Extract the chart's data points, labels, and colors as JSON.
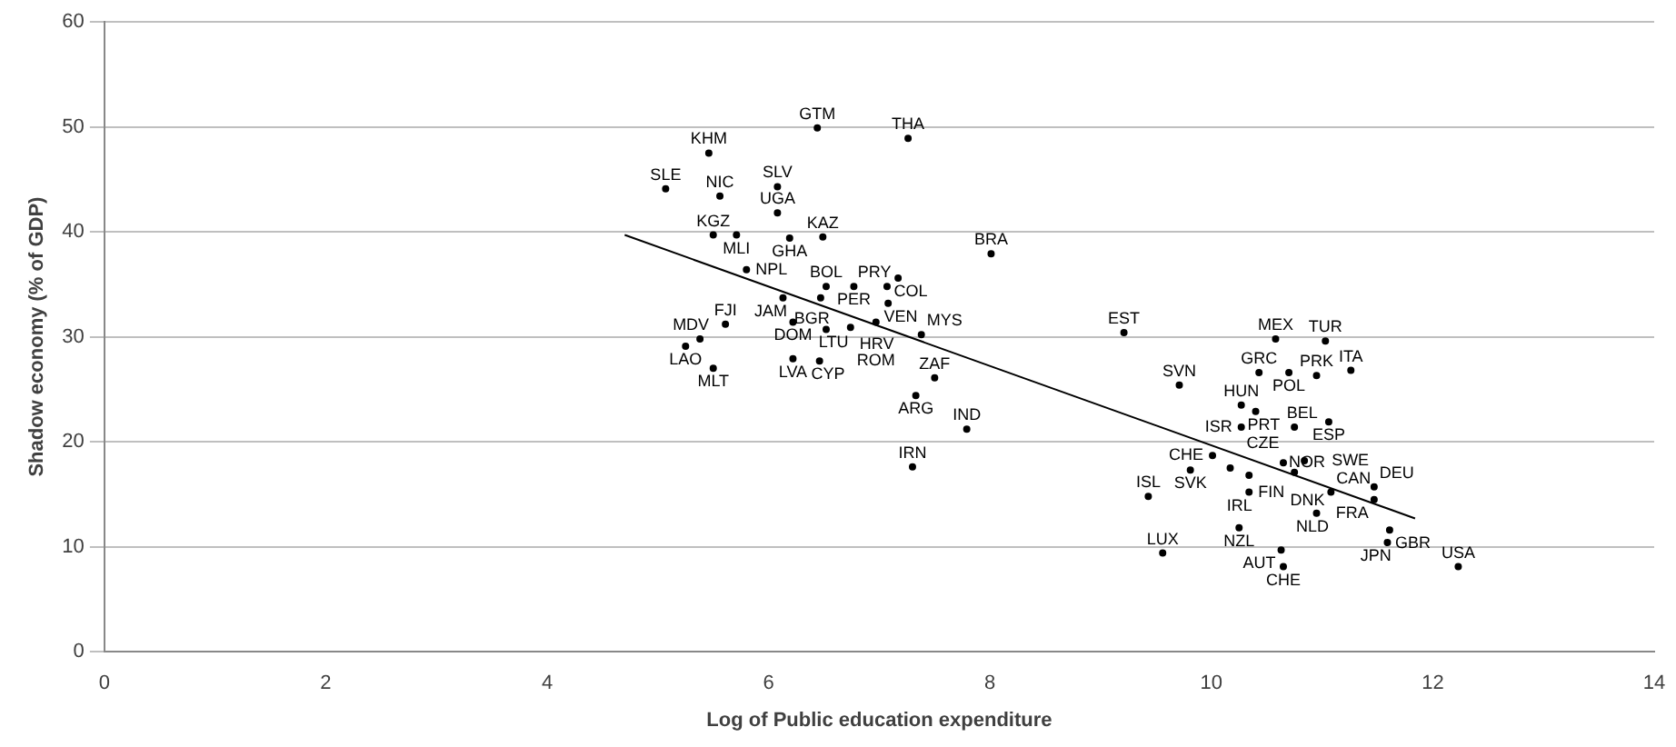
{
  "chart_data": {
    "type": "scatter",
    "xlabel": "Log of Public education expenditure",
    "ylabel": "Shadow economy (% of GDP)",
    "xlim": [
      0,
      14
    ],
    "xticks": [
      0,
      2,
      4,
      6,
      8,
      10,
      12,
      14
    ],
    "ylim": [
      0,
      60
    ],
    "yticks": [
      0,
      10,
      20,
      30,
      40,
      50,
      60
    ],
    "grid": "y",
    "legend": false,
    "series": [
      {
        "color": "#000000",
        "marker": "circle",
        "x": [
          6.44,
          7.26,
          5.46,
          5.07,
          5.56,
          6.08,
          6.08,
          5.5,
          5.71,
          6.19,
          6.49,
          8.01,
          5.8,
          6.52,
          6.77,
          7.07,
          7.17,
          6.13,
          6.47,
          7.08,
          5.61,
          6.22,
          6.52,
          6.74,
          6.97,
          7.38,
          5.25,
          5.38,
          5.5,
          6.22,
          6.46,
          7.5,
          7.33,
          7.79,
          7.3,
          9.21,
          10.58,
          11.03,
          10.43,
          10.7,
          10.95,
          11.26,
          9.71,
          10.27,
          10.4,
          10.27,
          10.75,
          11.06,
          10.01,
          9.81,
          10.17,
          10.34,
          10.65,
          10.84,
          10.75,
          9.43,
          10.34,
          11.08,
          11.47,
          11.47,
          10.95,
          10.25,
          11.61,
          11.59,
          9.56,
          10.63,
          10.65,
          12.23
        ],
        "values": [
          49.9,
          48.9,
          47.5,
          44.1,
          43.4,
          44.3,
          41.8,
          39.7,
          39.7,
          39.4,
          39.5,
          37.9,
          36.4,
          34.8,
          34.8,
          34.8,
          35.6,
          33.7,
          33.7,
          33.2,
          31.2,
          31.4,
          30.7,
          30.9,
          31.4,
          30.2,
          29.1,
          29.8,
          27.0,
          27.9,
          27.7,
          26.1,
          24.4,
          21.2,
          17.6,
          30.4,
          29.8,
          29.6,
          26.6,
          26.6,
          26.3,
          26.8,
          25.4,
          23.5,
          22.9,
          21.4,
          21.4,
          21.9,
          18.7,
          17.3,
          17.5,
          16.8,
          18.0,
          18.2,
          17.1,
          14.8,
          15.2,
          15.2,
          15.7,
          14.5,
          13.2,
          11.8,
          11.6,
          10.4,
          9.4,
          9.7,
          8.1,
          8.1
        ],
        "value_labels": [
          "GTM",
          "THA",
          "KHM",
          "SLE",
          "NIC",
          "SLV",
          "UGA",
          "KGZ",
          "MLI",
          "GHA",
          "KAZ",
          "BRA",
          "NPL",
          "BOL",
          "PER",
          "PRY",
          "COL",
          "JAM",
          "BGR",
          "VEN",
          "FJI",
          "DOM",
          "LTU",
          "HRV",
          "ROM",
          "MYS",
          "LAO",
          "MDV",
          "MLT",
          "LVA",
          "CYP",
          "ZAF",
          "ARG",
          "IND",
          "IRN",
          "EST",
          "MEX",
          "TUR",
          "GRC",
          "POL",
          "PRK",
          "ITA",
          "SVN",
          "HUN",
          "PRT",
          "ISR",
          "BEL",
          "ESP",
          "CHE",
          "SVK",
          "CZE",
          "FIN",
          "NOR",
          "SWE",
          "DNK",
          "ISL",
          "IRL",
          "CAN",
          "DEU",
          "FRA",
          "NLD",
          "NZL",
          "GBR",
          "JPN",
          "LUX",
          "AUT",
          "CHE",
          "USA"
        ]
      },
      {
        "type": "line",
        "color": "#000000",
        "marker": "none",
        "x": [
          4.7,
          11.84
        ],
        "values": [
          39.7,
          12.7
        ]
      }
    ]
  }
}
